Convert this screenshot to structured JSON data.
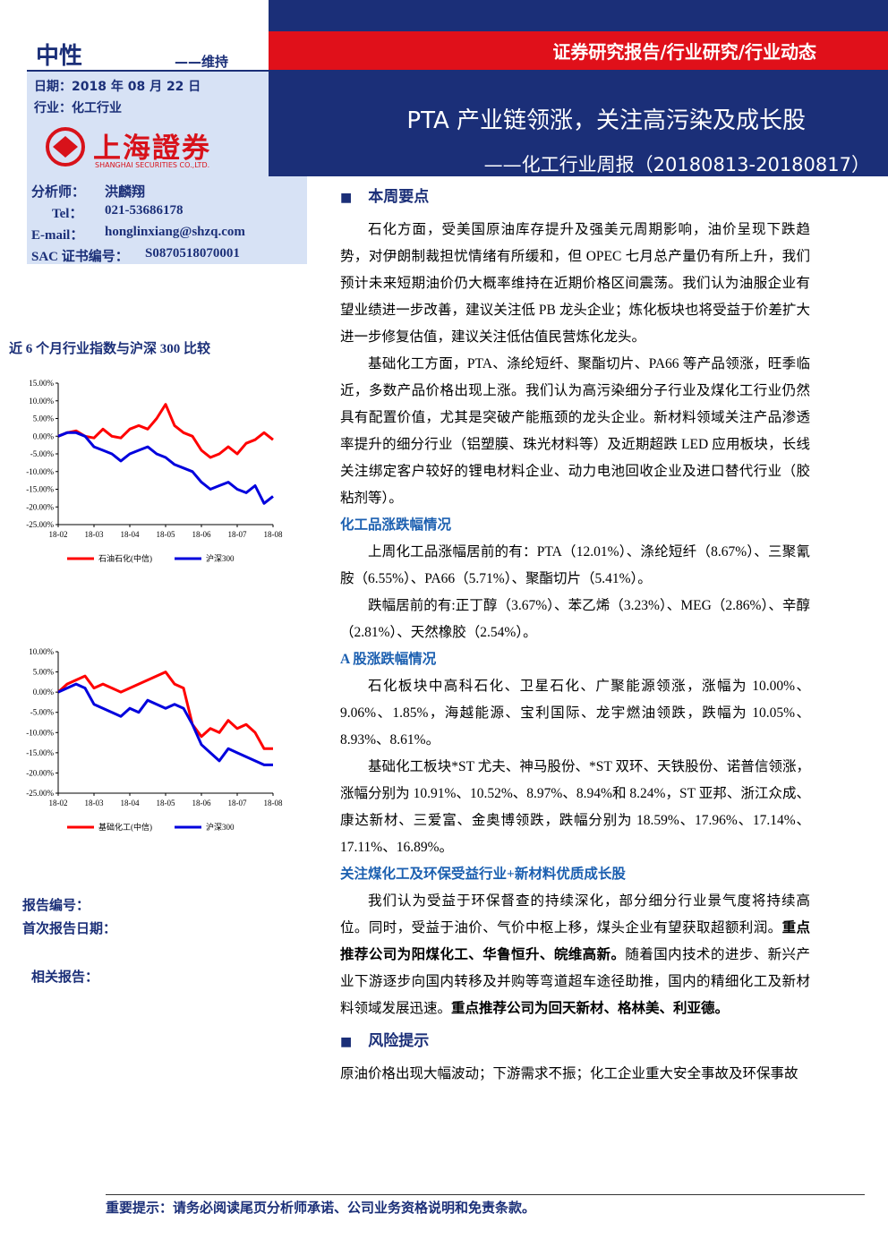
{
  "header": {
    "series_label": "证券研究报告/行业研究/行业动态",
    "title": "PTA 产业链领涨，关注高污染及成长股",
    "subtitle": "——化工行业周报（20180813-20180817）",
    "rating": "中性",
    "rating_change": "——维持",
    "date": "日期：2018 年 08 月 22 日",
    "industry": "行业：化工行业",
    "logo_name": "上海證券",
    "logo_en": "SHANGHAI SECURITIES CO.,LTD."
  },
  "analyst": {
    "rows": [
      [
        "分析师：",
        "洪麟翔"
      ],
      [
        "Tel：",
        "021-53686178"
      ],
      [
        "E-mail：",
        "honglinxiang@shzq.com"
      ],
      [
        "SAC 证书编号：",
        "S0870518070001"
      ]
    ]
  },
  "chart_title": "近 6 个月行业指数与沪深 300 比较",
  "charts": [
    {
      "type": "line",
      "categories": [
        "18-02",
        null,
        null,
        null,
        "18-03",
        null,
        null,
        null,
        "18-04",
        null,
        null,
        null,
        "18-05",
        null,
        null,
        null,
        "18-06",
        null,
        null,
        null,
        "18-07",
        null,
        null,
        null,
        "18-08"
      ],
      "ylim": [
        -25,
        15
      ],
      "yticks": [
        {
          "value": 15,
          "label": "15.00%"
        },
        {
          "value": 10,
          "label": "10.00%"
        },
        {
          "value": 5,
          "label": "5.00%"
        },
        {
          "value": 0,
          "label": "0.00%"
        },
        {
          "value": -5,
          "label": "-5.00%"
        },
        {
          "value": -10,
          "label": "-10.00%"
        },
        {
          "value": -15,
          "label": "-15.00%"
        },
        {
          "value": -20,
          "label": "-20.00%"
        },
        {
          "value": -25,
          "label": "-25.00%"
        }
      ],
      "series": [
        {
          "name": "石油石化(中信)",
          "color": "#ff0000",
          "values": [
            0,
            1,
            1.5,
            0,
            -0.5,
            2,
            0,
            -0.5,
            2,
            3,
            2,
            5,
            9,
            3,
            1,
            0,
            -4,
            -6,
            -5,
            -3,
            -5,
            -2,
            -1,
            1,
            -1
          ]
        },
        {
          "name": "沪深300",
          "color": "#0000dd",
          "values": [
            0,
            1,
            1,
            0,
            -3,
            -4,
            -5,
            -7,
            -5,
            -4,
            -3,
            -5,
            -6,
            -8,
            -9,
            -10,
            -13,
            -15,
            -14,
            -13,
            -15,
            -16,
            -14,
            -19,
            -17
          ]
        }
      ]
    },
    {
      "type": "line",
      "categories": [
        "18-02",
        null,
        null,
        null,
        "18-03",
        null,
        null,
        null,
        "18-04",
        null,
        null,
        null,
        "18-05",
        null,
        null,
        null,
        "18-06",
        null,
        null,
        null,
        "18-07",
        null,
        null,
        null,
        "18-08"
      ],
      "ylim": [
        -25,
        10
      ],
      "yticks": [
        {
          "value": 10,
          "label": "10.00%"
        },
        {
          "value": 5,
          "label": "5.00%"
        },
        {
          "value": 0,
          "label": "0.00%"
        },
        {
          "value": -5,
          "label": "-5.00%"
        },
        {
          "value": -10,
          "label": "-10.00%"
        },
        {
          "value": -15,
          "label": "-15.00%"
        },
        {
          "value": -20,
          "label": "-20.00%"
        },
        {
          "value": -25,
          "label": "-25.00%"
        }
      ],
      "series": [
        {
          "name": "基础化工(中信)",
          "color": "#ff0000",
          "values": [
            0,
            2,
            3,
            4,
            1,
            2,
            1,
            0,
            1,
            2,
            3,
            4,
            5,
            2,
            1,
            -8,
            -11,
            -9,
            -10,
            -7,
            -9,
            -8,
            -10,
            -14,
            -14
          ]
        },
        {
          "name": "沪深300",
          "color": "#0000dd",
          "values": [
            0,
            1,
            2,
            1,
            -3,
            -4,
            -5,
            -6,
            -4,
            -5,
            -2,
            -3,
            -4,
            -3,
            -4,
            -8,
            -13,
            -15,
            -17,
            -14,
            -15,
            -16,
            -17,
            -18,
            -18
          ]
        }
      ]
    }
  ],
  "side": {
    "report_no": "报告编号：",
    "first_date": "首次报告日期：",
    "related": "相关报告："
  },
  "body": [
    {
      "kind": "h2",
      "text": "本周要点"
    },
    {
      "kind": "p",
      "runs": [
        "石化方面，受美国原油库存提升及强美元周期影响，油价呈现下跌趋势，对伊朗制裁担忧情绪有所缓和，但 OPEC 七月总产量仍有所上升，我们预计未来短期油价仍大概率维持在近期价格区间震荡。我们认为油服企业有望业绩进一步改善，建议关注低 PB 龙头企业；炼化板块也将受益于价差扩大进一步修复估值，建议关注低估值民营炼化龙头。"
      ]
    },
    {
      "kind": "p",
      "runs": [
        "基础化工方面，PTA、涤纶短纤、聚酯切片、PA66 等产品领涨，旺季临近，多数产品价格出现上涨。我们认为高污染细分子行业及煤化工行业仍然具有配置价值，尤其是突破产能瓶颈的龙头企业。新材料领域关注产品渗透率提升的细分行业（铝塑膜、珠光材料等）及近期超跌 LED 应用板块，长线关注绑定客户较好的锂电材料企业、动力电池回收企业及进口替代行业（胶粘剂等）。"
      ]
    },
    {
      "kind": "h3",
      "text": "化工品涨跌幅情况"
    },
    {
      "kind": "p",
      "runs": [
        "上周化工品涨幅居前的有：PTA（12.01%）、涤纶短纤（8.67%）、三聚氰胺（6.55%）、PA66（5.71%）、聚酯切片（5.41%）。"
      ]
    },
    {
      "kind": "p",
      "runs": [
        "跌幅居前的有:正丁醇（3.67%）、苯乙烯（3.23%）、MEG（2.86%）、辛醇（2.81%）、天然橡胶（2.54%）。"
      ]
    },
    {
      "kind": "h3",
      "text": "A 股涨跌幅情况"
    },
    {
      "kind": "p",
      "runs": [
        "石化板块中高科石化、卫星石化、广聚能源领涨，涨幅为 10.00%、9.06%、1.85%，海越能源、宝利国际、龙宇燃油领跌，跌幅为 10.05%、8.93%、8.61%。"
      ]
    },
    {
      "kind": "p",
      "runs": [
        "基础化工板块*ST 尤夫、神马股份、*ST 双环、天铁股份、诺普信领涨，涨幅分别为 10.91%、10.52%、8.97%、8.94%和 8.24%，ST 亚邦、浙江众成、康达新材、三爱富、金奥博领跌，跌幅分别为 18.59%、17.96%、17.14%、17.11%、16.89%。"
      ]
    },
    {
      "kind": "h3",
      "text": "关注煤化工及环保受益行业+新材料优质成长股"
    },
    {
      "kind": "p",
      "runs": [
        "我们认为受益于环保督查的持续深化，部分细分行业景气度将持续高位。同时，受益于油价、气价中枢上移，煤头企业有望获取超额利润。",
        {
          "text": "重点推荐公司为阳煤化工、华鲁恒升、皖维高新。",
          "bold": true
        },
        "随着国内技术的进步、新兴产业下游逐步向国内转移及并购等弯道超车途径助推，国内的精细化工及新材料领域发展迅速。",
        {
          "text": "重点推荐公司为回天新材、格林美、利亚德。",
          "bold": true
        }
      ]
    },
    {
      "kind": "h2",
      "text": "风险提示"
    },
    {
      "kind": "p",
      "noindent": true,
      "runs": [
        "原油价格出现大幅波动；下游需求不振；化工企业重大安全事故及环保事故"
      ]
    }
  ],
  "footer": "重要提示：请务必阅读尾页分析师承诺、公司业务资格说明和免责条款。"
}
